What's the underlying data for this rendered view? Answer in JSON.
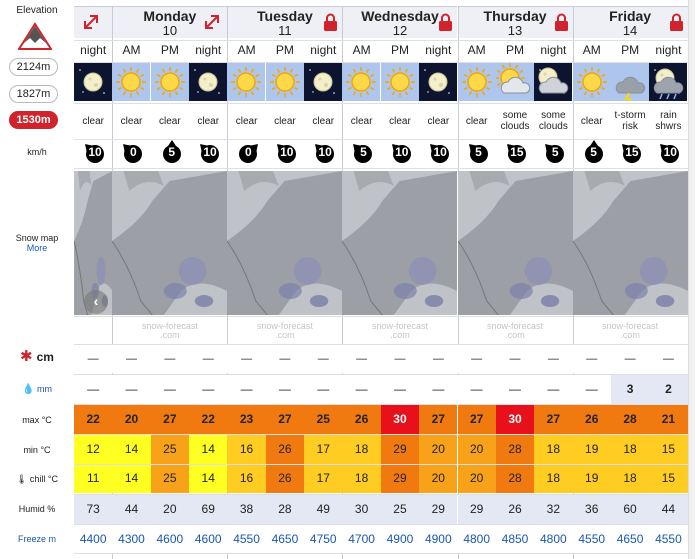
{
  "sidebar": {
    "elevation_title": "Elevation",
    "elevations": [
      "2124m",
      "1827m",
      "1530m"
    ],
    "selected_elevation": "1530m",
    "wind_unit": "km/h",
    "snow_map_label": "Snow map",
    "snow_map_more": "More",
    "snow_label": "cm",
    "rain_label": "mm",
    "max_label": "max °C",
    "min_label": "min °C",
    "chill_label": "chill °C",
    "humid_label": "Humid %",
    "freeze_label": "Freeze m"
  },
  "days": [
    {
      "name": "",
      "date": "",
      "slots": [
        "night"
      ]
    },
    {
      "name": "Monday",
      "date": "10",
      "slots": [
        "AM",
        "PM",
        "night"
      ]
    },
    {
      "name": "Tuesday",
      "date": "11",
      "slots": [
        "AM",
        "PM",
        "night"
      ]
    },
    {
      "name": "Wednesday",
      "date": "12",
      "slots": [
        "AM",
        "PM",
        "night"
      ]
    },
    {
      "name": "Thursday",
      "date": "13",
      "slots": [
        "AM",
        "PM",
        "night"
      ]
    },
    {
      "name": "Friday",
      "date": "14",
      "slots": [
        "AM",
        "PM",
        "night"
      ]
    }
  ],
  "forecast": [
    {
      "icon": "moon-night",
      "desc": "clear",
      "wind": 10,
      "dir": 315,
      "snow": "—",
      "rain": "—",
      "max": 22,
      "min": 12,
      "chill": 11,
      "humid": 73,
      "freeze": 4400
    },
    {
      "icon": "sun",
      "desc": "clear",
      "wind": 0,
      "dir": 315,
      "snow": "—",
      "rain": "—",
      "max": 20,
      "min": 14,
      "chill": 14,
      "humid": 44,
      "freeze": 4300
    },
    {
      "icon": "sun",
      "desc": "clear",
      "wind": 5,
      "dir": 0,
      "snow": "—",
      "rain": "—",
      "max": 27,
      "min": 25,
      "chill": 25,
      "humid": 20,
      "freeze": 4600
    },
    {
      "icon": "moon-night",
      "desc": "clear",
      "wind": 10,
      "dir": 315,
      "snow": "—",
      "rain": "—",
      "max": 22,
      "min": 14,
      "chill": 14,
      "humid": 69,
      "freeze": 4600
    },
    {
      "icon": "sun",
      "desc": "clear",
      "wind": 0,
      "dir": 45,
      "snow": "—",
      "rain": "—",
      "max": 23,
      "min": 16,
      "chill": 16,
      "humid": 38,
      "freeze": 4550
    },
    {
      "icon": "sun",
      "desc": "clear",
      "wind": 10,
      "dir": 315,
      "snow": "—",
      "rain": "—",
      "max": 27,
      "min": 26,
      "chill": 26,
      "humid": 28,
      "freeze": 4650
    },
    {
      "icon": "moon-night",
      "desc": "clear",
      "wind": 10,
      "dir": 315,
      "snow": "—",
      "rain": "—",
      "max": 25,
      "min": 17,
      "chill": 17,
      "humid": 49,
      "freeze": 4750
    },
    {
      "icon": "sun",
      "desc": "clear",
      "wind": 5,
      "dir": 315,
      "snow": "—",
      "rain": "—",
      "max": 26,
      "min": 18,
      "chill": 18,
      "humid": 30,
      "freeze": 4700
    },
    {
      "icon": "sun",
      "desc": "clear",
      "wind": 10,
      "dir": 315,
      "snow": "—",
      "rain": "—",
      "max": 30,
      "min": 29,
      "chill": 29,
      "humid": 25,
      "freeze": 4900
    },
    {
      "icon": "moon-night",
      "desc": "clear",
      "wind": 10,
      "dir": 315,
      "snow": "—",
      "rain": "—",
      "max": 27,
      "min": 20,
      "chill": 20,
      "humid": 29,
      "freeze": 4900
    },
    {
      "icon": "sun",
      "desc": "clear",
      "wind": 5,
      "dir": 315,
      "snow": "—",
      "rain": "—",
      "max": 27,
      "min": 20,
      "chill": 20,
      "humid": 29,
      "freeze": 4800
    },
    {
      "icon": "sun-cloud",
      "desc": "some clouds",
      "wind": 15,
      "dir": 315,
      "snow": "—",
      "rain": "—",
      "max": 30,
      "min": 28,
      "chill": 28,
      "humid": 26,
      "freeze": 4850
    },
    {
      "icon": "moon-cloud",
      "desc": "some clouds",
      "wind": 5,
      "dir": 315,
      "snow": "—",
      "rain": "—",
      "max": 27,
      "min": 18,
      "chill": 18,
      "humid": 32,
      "freeze": 4800
    },
    {
      "icon": "sun",
      "desc": "clear",
      "wind": 5,
      "dir": 0,
      "snow": "—",
      "rain": "—",
      "max": 26,
      "min": 19,
      "chill": 19,
      "humid": 36,
      "freeze": 4550
    },
    {
      "icon": "storm",
      "desc": "t-storm risk",
      "wind": 15,
      "dir": 315,
      "snow": "—",
      "rain": "3",
      "max": 28,
      "min": 18,
      "chill": 18,
      "humid": 60,
      "freeze": 4650
    },
    {
      "icon": "rain-night",
      "desc": "rain shwrs",
      "wind": 10,
      "dir": 315,
      "snow": "—",
      "rain": "2",
      "max": 21,
      "min": 15,
      "chill": 15,
      "humid": 44,
      "freeze": 4550
    }
  ],
  "map_watermark": [
    "snow-forecast",
    ".com"
  ],
  "colors": {
    "selected_pill": "#d0232b",
    "lock_red": "#d0232b",
    "link_blue": "#1a57b5",
    "max_30": "#e8101b",
    "max_hot": "#f07a10",
    "mid_yellow": "#ffff22",
    "mid_amber": "#ffcc22",
    "mid_orange": "#f7a218",
    "humid_bg": "#e4e8f4"
  },
  "icons": [
    "mountain-icon",
    "lock-icon",
    "expand-icon",
    "wind-arrow-icon",
    "snowflake-icon",
    "raindrop-icon",
    "thermometer-icon"
  ]
}
